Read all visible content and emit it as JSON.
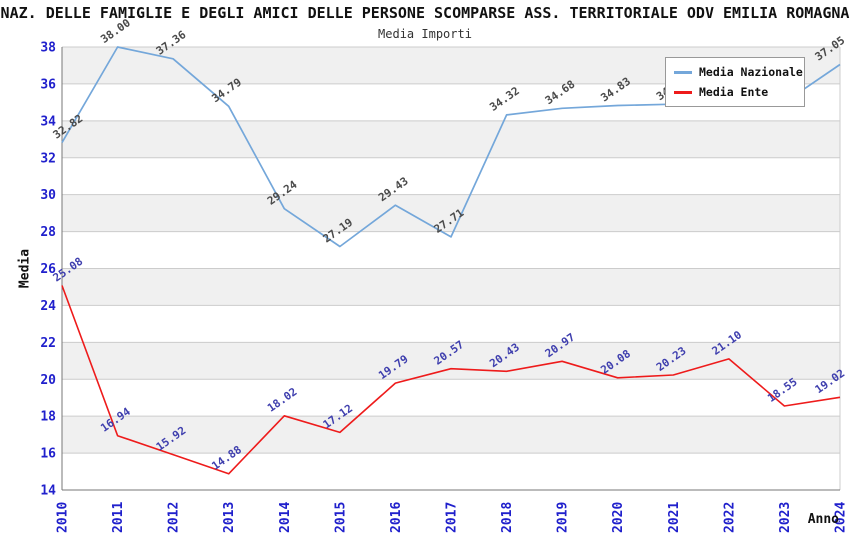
{
  "chart_data": {
    "type": "line",
    "title": "NAZ. DELLE FAMIGLIE E DEGLI AMICI DELLE PERSONE SCOMPARSE ASS. TERRITORIALE ODV EMILIA ROMAGNA",
    "subtitle": "Media Importi",
    "xlabel": "Anno",
    "ylabel": "Media",
    "x": [
      "2010",
      "2011",
      "2012",
      "2013",
      "2014",
      "2015",
      "2016",
      "2017",
      "2018",
      "2019",
      "2020",
      "2021",
      "2022",
      "2023",
      "2024"
    ],
    "ylim": [
      14,
      38
    ],
    "ytick_step": 2,
    "grid": "horizontal",
    "legend_position": "top-right-inside",
    "series": [
      {
        "name": "Media Nazionale",
        "color": "#74a7da",
        "label_color": "#4a4a4a",
        "values": [
          32.82,
          38.0,
          37.36,
          34.79,
          29.24,
          27.19,
          29.43,
          27.71,
          34.32,
          34.68,
          34.83,
          34.9,
          34.95,
          35.0,
          37.05
        ],
        "labels_hidden_by_legend": [
          "2021",
          "2022",
          "2023"
        ]
      },
      {
        "name": "Media Ente",
        "color": "#ee1b1b",
        "label_color": "#3f3fae",
        "values": [
          25.08,
          16.94,
          15.92,
          14.88,
          18.02,
          17.12,
          19.79,
          20.57,
          20.43,
          20.97,
          20.08,
          20.23,
          21.1,
          18.55,
          19.02
        ]
      }
    ],
    "colors": {
      "tick_label": "#2020cc",
      "gridline": "#cccccc",
      "band_fill": "#f0f0f0",
      "axis_spine": "#777777",
      "plot_border": "#cccccc"
    }
  }
}
